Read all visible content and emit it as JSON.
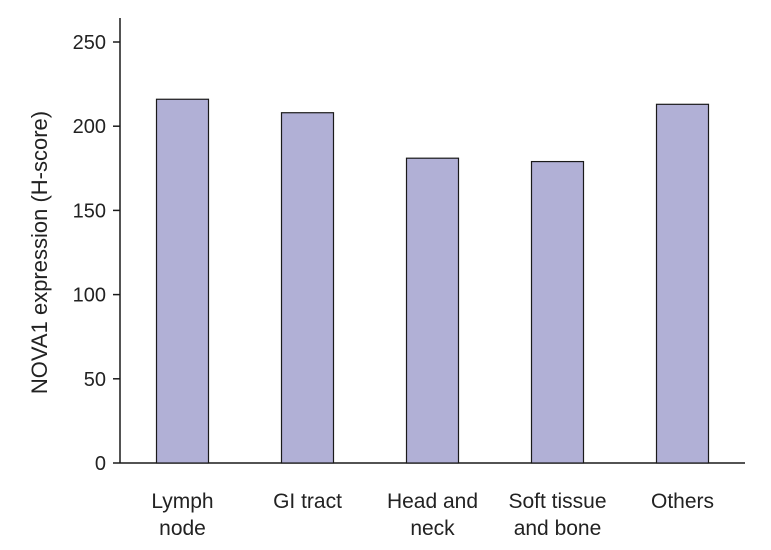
{
  "chart_data": {
    "type": "bar",
    "categories": [
      [
        "Lymph",
        "node"
      ],
      [
        "GI tract"
      ],
      [
        "Head and",
        "neck"
      ],
      [
        "Soft tissue",
        "and bone"
      ],
      [
        "Others"
      ]
    ],
    "values": [
      216,
      208,
      181,
      179,
      213
    ],
    "title": "",
    "xlabel": "",
    "ylabel": "NOVA1 expression (H-score)",
    "ylim": [
      0,
      250
    ],
    "yticks": [
      0,
      50,
      100,
      150,
      200,
      250
    ],
    "grid": false,
    "legend": "none",
    "colors": {
      "bar_fill": "#b1b0d6",
      "bar_stroke": "#1a1a1a",
      "axis": "#1a1a1a",
      "text": "#222222"
    }
  }
}
